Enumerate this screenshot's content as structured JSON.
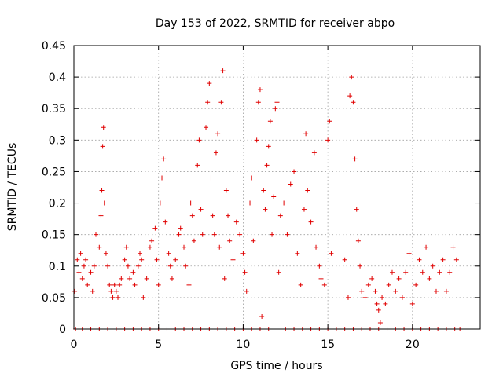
{
  "chart_data": {
    "type": "scatter",
    "title": "Day 153 of 2022, SRMTID for receiver abpo",
    "xlabel": "GPS time / hours",
    "ylabel": "SRMTID / TECUs",
    "xlim": [
      0,
      24
    ],
    "ylim": [
      0,
      0.45
    ],
    "x_ticks": [
      0,
      5,
      10,
      15,
      20
    ],
    "x_tick_labels": [
      "0",
      "5",
      "10",
      "15",
      "20"
    ],
    "y_ticks": [
      0,
      0.05,
      0.1,
      0.15,
      0.2,
      0.25,
      0.3,
      0.35,
      0.4,
      0.45
    ],
    "y_tick_labels": [
      "0",
      "0.05",
      "0.1",
      "0.15",
      "0.2",
      "0.25",
      "0.3",
      "0.35",
      "0.4",
      "0.45"
    ],
    "grid": true,
    "marker": "plus",
    "color": "#e00000",
    "series": [
      {
        "name": "SRMTID",
        "points": [
          [
            0.05,
            0.06
          ],
          [
            0.2,
            0.11
          ],
          [
            0.3,
            0.09
          ],
          [
            0.4,
            0.12
          ],
          [
            0.5,
            0.08
          ],
          [
            0.6,
            0.1
          ],
          [
            0.7,
            0.11
          ],
          [
            0.8,
            0.07
          ],
          [
            1.0,
            0.09
          ],
          [
            1.1,
            0.06
          ],
          [
            1.2,
            0.1
          ],
          [
            1.3,
            0.15
          ],
          [
            1.5,
            0.13
          ],
          [
            1.6,
            0.18
          ],
          [
            1.65,
            0.22
          ],
          [
            1.7,
            0.29
          ],
          [
            1.75,
            0.32
          ],
          [
            1.8,
            0.2
          ],
          [
            1.9,
            0.12
          ],
          [
            2.0,
            0.1
          ],
          [
            2.1,
            0.07
          ],
          [
            2.2,
            0.06
          ],
          [
            2.3,
            0.05
          ],
          [
            2.4,
            0.07
          ],
          [
            2.5,
            0.06
          ],
          [
            2.6,
            0.05
          ],
          [
            2.7,
            0.07
          ],
          [
            2.8,
            0.08
          ],
          [
            3.0,
            0.11
          ],
          [
            3.1,
            0.13
          ],
          [
            3.2,
            0.1
          ],
          [
            3.3,
            0.08
          ],
          [
            3.5,
            0.09
          ],
          [
            3.6,
            0.07
          ],
          [
            3.8,
            0.1
          ],
          [
            3.9,
            0.12
          ],
          [
            4.0,
            0.11
          ],
          [
            4.1,
            0.05
          ],
          [
            4.3,
            0.08
          ],
          [
            4.5,
            0.13
          ],
          [
            4.6,
            0.14
          ],
          [
            4.8,
            0.16
          ],
          [
            4.9,
            0.11
          ],
          [
            5.0,
            0.07
          ],
          [
            5.1,
            0.2
          ],
          [
            5.2,
            0.24
          ],
          [
            5.3,
            0.27
          ],
          [
            5.4,
            0.17
          ],
          [
            5.6,
            0.12
          ],
          [
            5.7,
            0.1
          ],
          [
            5.8,
            0.08
          ],
          [
            6.0,
            0.11
          ],
          [
            6.2,
            0.15
          ],
          [
            6.3,
            0.16
          ],
          [
            6.5,
            0.13
          ],
          [
            6.6,
            0.1
          ],
          [
            6.8,
            0.07
          ],
          [
            6.9,
            0.2
          ],
          [
            7.0,
            0.18
          ],
          [
            7.1,
            0.14
          ],
          [
            7.3,
            0.26
          ],
          [
            7.4,
            0.3
          ],
          [
            7.5,
            0.19
          ],
          [
            7.6,
            0.15
          ],
          [
            7.8,
            0.32
          ],
          [
            7.9,
            0.36
          ],
          [
            8.0,
            0.39
          ],
          [
            8.1,
            0.24
          ],
          [
            8.2,
            0.18
          ],
          [
            8.3,
            0.15
          ],
          [
            8.4,
            0.28
          ],
          [
            8.5,
            0.31
          ],
          [
            8.6,
            0.13
          ],
          [
            8.7,
            0.36
          ],
          [
            8.8,
            0.41
          ],
          [
            8.9,
            0.08
          ],
          [
            9.0,
            0.22
          ],
          [
            9.1,
            0.18
          ],
          [
            9.2,
            0.14
          ],
          [
            9.4,
            0.11
          ],
          [
            9.6,
            0.17
          ],
          [
            9.8,
            0.15
          ],
          [
            10.0,
            0.12
          ],
          [
            10.1,
            0.09
          ],
          [
            10.2,
            0.06
          ],
          [
            10.4,
            0.2
          ],
          [
            10.5,
            0.24
          ],
          [
            10.6,
            0.14
          ],
          [
            10.8,
            0.3
          ],
          [
            10.9,
            0.36
          ],
          [
            11.0,
            0.38
          ],
          [
            11.1,
            0.02
          ],
          [
            11.2,
            0.22
          ],
          [
            11.3,
            0.19
          ],
          [
            11.4,
            0.26
          ],
          [
            11.5,
            0.29
          ],
          [
            11.6,
            0.33
          ],
          [
            11.7,
            0.15
          ],
          [
            11.8,
            0.21
          ],
          [
            11.9,
            0.35
          ],
          [
            12.0,
            0.36
          ],
          [
            12.1,
            0.09
          ],
          [
            12.2,
            0.18
          ],
          [
            12.4,
            0.2
          ],
          [
            12.6,
            0.15
          ],
          [
            12.8,
            0.23
          ],
          [
            13.0,
            0.25
          ],
          [
            13.2,
            0.12
          ],
          [
            13.4,
            0.07
          ],
          [
            13.6,
            0.19
          ],
          [
            13.7,
            0.31
          ],
          [
            13.8,
            0.22
          ],
          [
            14.0,
            0.17
          ],
          [
            14.2,
            0.28
          ],
          [
            14.3,
            0.13
          ],
          [
            14.5,
            0.1
          ],
          [
            14.6,
            0.08
          ],
          [
            14.8,
            0.07
          ],
          [
            15.0,
            0.3
          ],
          [
            15.1,
            0.33
          ],
          [
            15.2,
            0.12
          ],
          [
            16.0,
            0.11
          ],
          [
            16.2,
            0.05
          ],
          [
            16.3,
            0.37
          ],
          [
            16.4,
            0.4
          ],
          [
            16.5,
            0.36
          ],
          [
            16.6,
            0.27
          ],
          [
            16.7,
            0.19
          ],
          [
            16.8,
            0.14
          ],
          [
            16.9,
            0.1
          ],
          [
            17.0,
            0.06
          ],
          [
            17.2,
            0.05
          ],
          [
            17.4,
            0.07
          ],
          [
            17.6,
            0.08
          ],
          [
            17.8,
            0.06
          ],
          [
            17.9,
            0.04
          ],
          [
            18.0,
            0.03
          ],
          [
            18.1,
            0.01
          ],
          [
            18.2,
            0.05
          ],
          [
            18.4,
            0.04
          ],
          [
            18.6,
            0.07
          ],
          [
            18.8,
            0.09
          ],
          [
            19.0,
            0.06
          ],
          [
            19.2,
            0.08
          ],
          [
            19.4,
            0.05
          ],
          [
            19.6,
            0.09
          ],
          [
            19.8,
            0.12
          ],
          [
            20.0,
            0.04
          ],
          [
            20.2,
            0.07
          ],
          [
            20.4,
            0.11
          ],
          [
            20.6,
            0.09
          ],
          [
            20.8,
            0.13
          ],
          [
            21.0,
            0.08
          ],
          [
            21.2,
            0.1
          ],
          [
            21.4,
            0.06
          ],
          [
            21.6,
            0.09
          ],
          [
            21.8,
            0.11
          ],
          [
            22.0,
            0.06
          ],
          [
            22.2,
            0.09
          ],
          [
            22.4,
            0.13
          ],
          [
            22.6,
            0.11
          ],
          [
            0.1,
            0.0
          ],
          [
            0.5,
            0.0
          ],
          [
            1.0,
            0.0
          ],
          [
            1.5,
            0.0
          ],
          [
            2.0,
            0.0
          ],
          [
            2.5,
            0.0
          ],
          [
            3.0,
            0.0
          ],
          [
            3.5,
            0.0
          ],
          [
            4.0,
            0.0
          ],
          [
            4.5,
            0.0
          ],
          [
            5.0,
            0.0
          ],
          [
            5.5,
            0.0
          ],
          [
            6.0,
            0.0
          ],
          [
            6.5,
            0.0
          ],
          [
            7.0,
            0.0
          ],
          [
            7.5,
            0.0
          ],
          [
            8.0,
            0.0
          ],
          [
            8.5,
            0.0
          ],
          [
            9.0,
            0.0
          ],
          [
            9.5,
            0.0
          ],
          [
            10.0,
            0.0
          ],
          [
            10.5,
            0.0
          ],
          [
            11.0,
            0.0
          ],
          [
            11.5,
            0.0
          ],
          [
            12.0,
            0.0
          ],
          [
            12.5,
            0.0
          ],
          [
            13.0,
            0.0
          ],
          [
            13.5,
            0.0
          ],
          [
            14.0,
            0.0
          ],
          [
            14.5,
            0.0
          ],
          [
            15.0,
            0.0
          ],
          [
            15.5,
            0.0
          ],
          [
            16.0,
            0.0
          ],
          [
            16.5,
            0.0
          ],
          [
            17.0,
            0.0
          ],
          [
            17.5,
            0.0
          ],
          [
            18.0,
            0.0
          ],
          [
            18.5,
            0.0
          ],
          [
            19.0,
            0.0
          ],
          [
            19.5,
            0.0
          ],
          [
            20.0,
            0.0
          ],
          [
            20.5,
            0.0
          ],
          [
            21.0,
            0.0
          ],
          [
            21.5,
            0.0
          ],
          [
            22.0,
            0.0
          ],
          [
            22.5,
            0.0
          ],
          [
            22.8,
            0.0
          ]
        ]
      }
    ]
  }
}
